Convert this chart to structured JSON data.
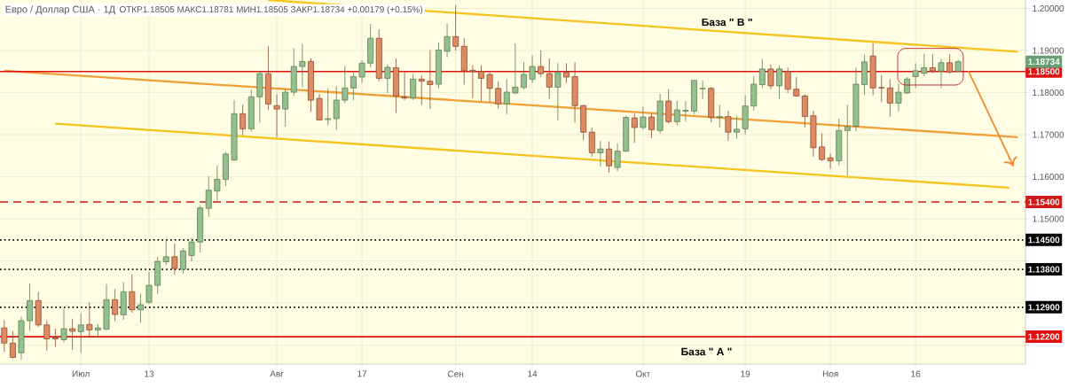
{
  "chart_data": {
    "type": "candlestick",
    "title": "Евро / Доллар США · 1Д",
    "subtitle": "ОТКР1.18505 МАКС1.18781 МИН1.18505 ЗАКР1.18734 +0.00179 (+0.15%)",
    "categories": [
      null,
      null,
      null,
      null,
      null,
      null,
      null,
      null,
      null,
      "Июл",
      null,
      null,
      null,
      null,
      null,
      null,
      null,
      "13",
      null,
      null,
      null,
      null,
      null,
      null,
      null,
      null,
      null,
      null,
      null,
      null,
      null,
      null,
      "Авг",
      null,
      null,
      null,
      null,
      null,
      null,
      null,
      null,
      null,
      "17",
      null,
      null,
      null,
      null,
      null,
      null,
      null,
      null,
      null,
      null,
      "Сен",
      null,
      null,
      null,
      null,
      null,
      null,
      null,
      null,
      "14",
      null,
      null,
      null,
      null,
      null,
      null,
      null,
      null,
      null,
      null,
      null,
      null,
      "Окт",
      null,
      null,
      null,
      null,
      null,
      null,
      null,
      null,
      null,
      null,
      null,
      "19",
      null,
      null,
      null,
      null,
      null,
      null,
      null,
      null,
      null,
      "Ноя",
      null,
      null,
      null,
      null,
      null,
      null,
      null,
      null,
      null,
      "16",
      null,
      null,
      null,
      null,
      null,
      null,
      null,
      null,
      null,
      null,
      null,
      null
    ],
    "ylim": [
      1.1155,
      1.202
    ],
    "yticks": [
      {
        "value": 1.12,
        "label": null
      },
      {
        "value": 1.13,
        "label": null
      },
      {
        "value": 1.14,
        "label": null
      },
      {
        "value": 1.15,
        "label": "1.15000"
      },
      {
        "value": 1.16,
        "label": "1.16000"
      },
      {
        "value": 1.17,
        "label": "1.17000"
      },
      {
        "value": 1.18,
        "label": "1.18000"
      },
      {
        "value": 1.19,
        "label": "1.19000"
      },
      {
        "value": 1.2,
        "label": "1.20000"
      }
    ],
    "grid": true,
    "ohlc": [
      [
        1.1241,
        1.1259,
        1.1184,
        1.1205
      ],
      [
        1.1205,
        1.1234,
        1.1168,
        1.1171
      ],
      [
        1.1182,
        1.1268,
        1.1166,
        1.1258
      ],
      [
        1.1258,
        1.1347,
        1.1234,
        1.1306
      ],
      [
        1.1306,
        1.1326,
        1.1243,
        1.1248
      ],
      [
        1.1248,
        1.1259,
        1.1187,
        1.1215
      ],
      [
        1.1218,
        1.1239,
        1.1196,
        1.1215
      ],
      [
        1.1213,
        1.1287,
        1.1206,
        1.1239
      ],
      [
        1.1239,
        1.1263,
        1.1189,
        1.1233
      ],
      [
        1.1232,
        1.1275,
        1.1182,
        1.1248
      ],
      [
        1.1249,
        1.1302,
        1.122,
        1.1236
      ],
      [
        1.1236,
        1.125,
        1.122,
        1.1241
      ],
      [
        1.1238,
        1.1345,
        1.1236,
        1.1308
      ],
      [
        1.1308,
        1.1333,
        1.1257,
        1.1273
      ],
      [
        1.1272,
        1.135,
        1.126,
        1.1327
      ],
      [
        1.1327,
        1.1368,
        1.1277,
        1.1284
      ],
      [
        1.1284,
        1.1322,
        1.1253,
        1.1296
      ],
      [
        1.1302,
        1.1375,
        1.1298,
        1.1342
      ],
      [
        1.1342,
        1.141,
        1.1322,
        1.1399
      ],
      [
        1.1398,
        1.1451,
        1.139,
        1.141
      ],
      [
        1.141,
        1.1441,
        1.1368,
        1.1382
      ],
      [
        1.138,
        1.1431,
        1.1371,
        1.1424
      ],
      [
        1.1413,
        1.1455,
        1.1399,
        1.1445
      ],
      [
        1.1445,
        1.1533,
        1.142,
        1.1526
      ],
      [
        1.1525,
        1.1601,
        1.1505,
        1.1568
      ],
      [
        1.1566,
        1.1627,
        1.1543,
        1.1594
      ],
      [
        1.1594,
        1.1659,
        1.1578,
        1.1654
      ],
      [
        1.164,
        1.1782,
        1.1638,
        1.175
      ],
      [
        1.175,
        1.1771,
        1.1698,
        1.1714
      ],
      [
        1.1714,
        1.1806,
        1.1707,
        1.179
      ],
      [
        1.179,
        1.1852,
        1.1729,
        1.1845
      ],
      [
        1.1845,
        1.191,
        1.1759,
        1.1773
      ],
      [
        1.1769,
        1.1796,
        1.1694,
        1.1761
      ],
      [
        1.1761,
        1.181,
        1.1719,
        1.1801
      ],
      [
        1.1801,
        1.1905,
        1.1792,
        1.1862
      ],
      [
        1.1862,
        1.1915,
        1.1813,
        1.1874
      ],
      [
        1.1874,
        1.1881,
        1.1754,
        1.1782
      ],
      [
        1.1786,
        1.1797,
        1.1733,
        1.1735
      ],
      [
        1.1736,
        1.181,
        1.1722,
        1.1738
      ],
      [
        1.1738,
        1.1815,
        1.1712,
        1.1782
      ],
      [
        1.1782,
        1.1863,
        1.1775,
        1.1811
      ],
      [
        1.1811,
        1.1848,
        1.1782,
        1.1838
      ],
      [
        1.1837,
        1.1877,
        1.1824,
        1.187
      ],
      [
        1.187,
        1.1963,
        1.186,
        1.1929
      ],
      [
        1.1929,
        1.195,
        1.1827,
        1.1834
      ],
      [
        1.1834,
        1.1867,
        1.1799,
        1.186
      ],
      [
        1.1859,
        1.1881,
        1.1752,
        1.1792
      ],
      [
        1.179,
        1.1848,
        1.1782,
        1.1787
      ],
      [
        1.1787,
        1.1845,
        1.1782,
        1.1832
      ],
      [
        1.1832,
        1.1841,
        1.1771,
        1.1827
      ],
      [
        1.1827,
        1.1901,
        1.1761,
        1.1819
      ],
      [
        1.182,
        1.1919,
        1.181,
        1.1901
      ],
      [
        1.1898,
        1.1964,
        1.1884,
        1.1933
      ],
      [
        1.1933,
        1.2008,
        1.19,
        1.191
      ],
      [
        1.191,
        1.1929,
        1.1819,
        1.1852
      ],
      [
        1.1853,
        1.1865,
        1.1787,
        1.185
      ],
      [
        1.185,
        1.1865,
        1.178,
        1.1834
      ],
      [
        1.1843,
        1.1848,
        1.1778,
        1.181
      ],
      [
        1.181,
        1.1827,
        1.1762,
        1.1773
      ],
      [
        1.1773,
        1.1832,
        1.1749,
        1.1801
      ],
      [
        1.1799,
        1.1917,
        1.1797,
        1.1813
      ],
      [
        1.1812,
        1.1873,
        1.1808,
        1.1843
      ],
      [
        1.1832,
        1.1889,
        1.1823,
        1.1862
      ],
      [
        1.1862,
        1.19,
        1.1837,
        1.1845
      ],
      [
        1.1845,
        1.1881,
        1.1785,
        1.1813
      ],
      [
        1.1813,
        1.187,
        1.1734,
        1.1848
      ],
      [
        1.1848,
        1.187,
        1.1823,
        1.1837
      ],
      [
        1.1838,
        1.1872,
        1.1729,
        1.1769
      ],
      [
        1.1769,
        1.1771,
        1.1687,
        1.1706
      ],
      [
        1.1706,
        1.1717,
        1.1648,
        1.1657
      ],
      [
        1.1657,
        1.1685,
        1.1624,
        1.1666
      ],
      [
        1.1666,
        1.1684,
        1.161,
        1.1626
      ],
      [
        1.1622,
        1.1679,
        1.1613,
        1.1661
      ],
      [
        1.1661,
        1.1745,
        1.1659,
        1.1741
      ],
      [
        1.174,
        1.175,
        1.1681,
        1.1717
      ],
      [
        1.1717,
        1.1766,
        1.1712,
        1.1742
      ],
      [
        1.1742,
        1.175,
        1.1692,
        1.1712
      ],
      [
        1.171,
        1.1797,
        1.1703,
        1.178
      ],
      [
        1.178,
        1.1808,
        1.1727,
        1.1731
      ],
      [
        1.1731,
        1.178,
        1.1722,
        1.1759
      ],
      [
        1.1756,
        1.178,
        1.1731,
        1.1758
      ],
      [
        1.1756,
        1.1829,
        1.1748,
        1.1829
      ],
      [
        1.1809,
        1.1828,
        1.1785,
        1.181
      ],
      [
        1.181,
        1.1813,
        1.1729,
        1.1741
      ],
      [
        1.1741,
        1.1771,
        1.1717,
        1.1743
      ],
      [
        1.1743,
        1.1757,
        1.1685,
        1.1706
      ],
      [
        1.1706,
        1.1745,
        1.1691,
        1.1713
      ],
      [
        1.1714,
        1.1794,
        1.1701,
        1.1768
      ],
      [
        1.1768,
        1.1839,
        1.1757,
        1.182
      ],
      [
        1.1819,
        1.188,
        1.1811,
        1.1856
      ],
      [
        1.1856,
        1.1867,
        1.1808,
        1.1816
      ],
      [
        1.1816,
        1.1865,
        1.1785,
        1.1856
      ],
      [
        1.185,
        1.1859,
        1.1799,
        1.1808
      ],
      [
        1.1808,
        1.1837,
        1.179,
        1.1792
      ],
      [
        1.1792,
        1.1796,
        1.1717,
        1.1743
      ],
      [
        1.1745,
        1.1757,
        1.1648,
        1.1669
      ],
      [
        1.1671,
        1.1703,
        1.1638,
        1.1641
      ],
      [
        1.1645,
        1.1655,
        1.1619,
        1.1638
      ],
      [
        1.1638,
        1.1738,
        1.1627,
        1.171
      ],
      [
        1.171,
        1.1771,
        1.1603,
        1.1719
      ],
      [
        1.172,
        1.1859,
        1.1708,
        1.182
      ],
      [
        1.1819,
        1.1891,
        1.1794,
        1.1873
      ],
      [
        1.1887,
        1.1917,
        1.1794,
        1.1811
      ],
      [
        1.1812,
        1.1841,
        1.1777,
        1.1811
      ],
      [
        1.1811,
        1.1832,
        1.1743,
        1.1775
      ],
      [
        1.1775,
        1.1822,
        1.1755,
        1.1801
      ],
      [
        1.1799,
        1.1837,
        1.1797,
        1.1832
      ],
      [
        1.1838,
        1.187,
        1.1811,
        1.1852
      ],
      [
        1.1846,
        1.1892,
        1.1839,
        1.1859
      ],
      [
        1.1859,
        1.1891,
        1.1846,
        1.1851
      ],
      [
        1.1851,
        1.1881,
        1.1811,
        1.1871
      ],
      [
        1.1871,
        1.1891,
        1.1845,
        1.1849
      ],
      [
        1.18505,
        1.18781,
        1.18505,
        1.18734
      ],
      null,
      null,
      null,
      null,
      null,
      null,
      null
    ],
    "series": [
      {
        "type": "line",
        "color": "#f5c31c",
        "values": [
          null,
          null,
          null,
          null,
          null,
          null,
          null,
          null,
          null,
          null,
          null,
          null,
          null,
          null,
          null,
          null,
          null,
          null,
          null,
          null,
          null,
          null,
          null,
          null,
          null,
          null,
          null,
          null,
          null,
          null,
          null,
          1.202,
          null,
          null,
          null,
          null,
          null,
          null,
          null,
          null,
          null,
          null,
          null,
          null,
          null,
          null,
          null,
          null,
          null,
          null,
          null,
          null,
          null,
          null,
          null,
          null,
          null,
          null,
          null,
          null,
          null,
          null,
          null,
          null,
          null,
          null,
          null,
          null,
          null,
          null,
          null,
          null,
          null,
          null,
          null,
          null,
          null,
          null,
          null,
          null,
          null,
          null,
          null,
          null,
          null,
          null,
          null,
          null,
          null,
          null,
          null,
          null,
          null,
          null,
          null,
          null,
          null,
          null,
          null,
          null,
          null,
          null,
          null,
          null,
          null,
          null,
          null,
          null,
          null,
          null,
          null,
          null,
          null,
          null,
          null,
          null,
          null,
          null,
          null,
          1.1897
        ]
      },
      {
        "type": "line",
        "color": "#f0a038",
        "values": [
          1.1852,
          null,
          null,
          null,
          null,
          null,
          null,
          null,
          null,
          null,
          null,
          null,
          null,
          null,
          null,
          null,
          null,
          null,
          null,
          null,
          null,
          null,
          null,
          null,
          null,
          null,
          null,
          null,
          null,
          null,
          null,
          null,
          null,
          null,
          null,
          null,
          null,
          null,
          null,
          null,
          null,
          null,
          null,
          null,
          null,
          null,
          null,
          null,
          null,
          null,
          null,
          null,
          null,
          null,
          null,
          null,
          null,
          null,
          null,
          null,
          null,
          null,
          null,
          null,
          null,
          null,
          null,
          null,
          null,
          null,
          null,
          null,
          null,
          null,
          null,
          null,
          null,
          null,
          null,
          null,
          null,
          null,
          null,
          null,
          null,
          null,
          null,
          null,
          null,
          null,
          null,
          null,
          null,
          null,
          null,
          null,
          null,
          null,
          null,
          null,
          null,
          null,
          null,
          null,
          null,
          null,
          null,
          null,
          null,
          null,
          null,
          null,
          null,
          null,
          null,
          null,
          null,
          null,
          null,
          1.1694
        ]
      },
      {
        "type": "line",
        "color": "#f5c31c",
        "values": [
          null,
          null,
          null,
          null,
          null,
          null,
          1.1726,
          null,
          null,
          null,
          null,
          null,
          null,
          null,
          null,
          null,
          null,
          null,
          null,
          null,
          null,
          null,
          null,
          null,
          null,
          null,
          null,
          null,
          null,
          null,
          null,
          null,
          null,
          null,
          null,
          null,
          null,
          null,
          null,
          null,
          null,
          null,
          null,
          null,
          null,
          null,
          null,
          null,
          null,
          null,
          null,
          null,
          null,
          null,
          null,
          null,
          null,
          null,
          null,
          null,
          null,
          null,
          null,
          null,
          null,
          null,
          null,
          null,
          null,
          null,
          null,
          null,
          null,
          null,
          null,
          null,
          null,
          null,
          null,
          null,
          null,
          null,
          null,
          null,
          null,
          null,
          null,
          null,
          null,
          null,
          null,
          null,
          null,
          null,
          null,
          null,
          null,
          null,
          null,
          null,
          null,
          null,
          null,
          null,
          null,
          null,
          null,
          null,
          null,
          null,
          null,
          null,
          null,
          null,
          null,
          null,
          null,
          null,
          1.1574,
          null
        ]
      }
    ],
    "ref_lines": [
      {
        "axis": "y",
        "value": 1.185,
        "label": "1.18500",
        "color": "#e01010",
        "line_style": "solid"
      },
      {
        "axis": "y",
        "value": 1.154,
        "label": "1.15400",
        "color": "#d01818",
        "line_style": "dashed"
      },
      {
        "axis": "y",
        "value": 1.145,
        "label": "1.14500",
        "color": "#000000",
        "line_style": "dotted"
      },
      {
        "axis": "y",
        "value": 1.138,
        "label": "1.13800",
        "color": "#000000",
        "line_style": "dotted"
      },
      {
        "axis": "y",
        "value": 1.129,
        "label": "1.12900",
        "color": "#000000",
        "line_style": "dotted"
      },
      {
        "axis": "y",
        "value": 1.122,
        "label": "1.12200",
        "color": "#e01010",
        "line_style": "solid"
      }
    ],
    "annotations": [
      "База \" В \"",
      "База \" А \"",
      {
        "text": "1.18734",
        "y": 1.18734
      }
    ]
  }
}
